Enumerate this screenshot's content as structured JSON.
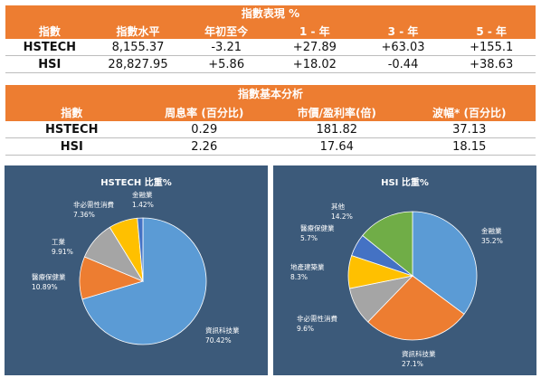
{
  "performance": {
    "title": "指數表現 %",
    "headers": [
      "指數",
      "指數水平",
      "年初至今",
      "1 - 年",
      "3 - 年",
      "5 - 年"
    ],
    "rows": [
      [
        "HSTECH",
        "8,155.37",
        "-3.21",
        "+27.89",
        "+63.03",
        "+155.1"
      ],
      [
        "HSI",
        "28,827.95",
        "+5.86",
        "+18.02",
        "-0.44",
        "+38.63"
      ]
    ]
  },
  "fundamentals": {
    "title": "指數基本分析",
    "headers": [
      "指數",
      "周息率 (百分比)",
      "市價/盈利率(倍)",
      "波幅* (百分比)"
    ],
    "rows": [
      [
        "HSTECH",
        "0.29",
        "181.82",
        "37.13"
      ],
      [
        "HSI",
        "2.26",
        "17.64",
        "18.15"
      ]
    ]
  },
  "chart_data": [
    {
      "type": "pie",
      "title": "HSTECH 比重%",
      "slices": [
        {
          "label": "資訊科技業",
          "value": 70.42,
          "display": "70.42%",
          "color": "#5b9bd5"
        },
        {
          "label": "醫療保健業",
          "value": 10.89,
          "display": "10.89%",
          "color": "#ed7d31"
        },
        {
          "label": "工業",
          "value": 9.91,
          "display": "9.91%",
          "color": "#a5a5a5"
        },
        {
          "label": "非必需性消費",
          "value": 7.36,
          "display": "7.36%",
          "color": "#ffc000"
        },
        {
          "label": "金融業",
          "value": 1.42,
          "display": "1.42%",
          "color": "#4472c4"
        }
      ]
    },
    {
      "type": "pie",
      "title": "HSI 比重%",
      "slices": [
        {
          "label": "金融業",
          "value": 35.2,
          "display": "35.2%",
          "color": "#5b9bd5"
        },
        {
          "label": "資訊科技業",
          "value": 27.1,
          "display": "27.1%",
          "color": "#ed7d31"
        },
        {
          "label": "非必需性消費",
          "value": 9.6,
          "display": "9.6%",
          "color": "#a5a5a5"
        },
        {
          "label": "地產建築業",
          "value": 8.3,
          "display": "8.3%",
          "color": "#ffc000"
        },
        {
          "label": "醫療保健業",
          "value": 5.7,
          "display": "5.7%",
          "color": "#4472c4"
        },
        {
          "label": "其他",
          "value": 14.2,
          "display": "14.2%",
          "color": "#70ad47"
        }
      ]
    }
  ]
}
